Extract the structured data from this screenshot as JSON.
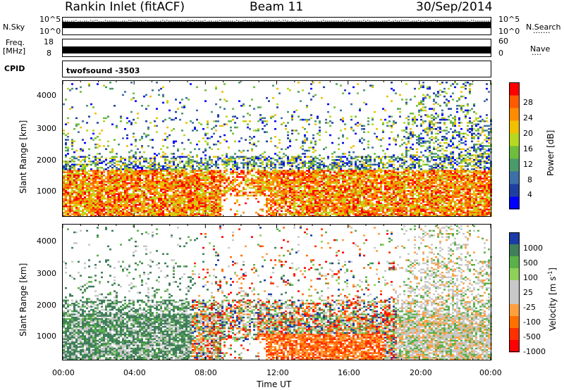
{
  "header": {
    "title": "Rankin Inlet (fitACF)",
    "beam": "Beam 11",
    "date": "30/Sep/2014"
  },
  "status_panels": {
    "nsky_label": "N.Sky",
    "nsky_ticks": [
      "10^5",
      "10^0"
    ],
    "nsearch_label": "N.Search",
    "nsearch_ticks": [
      "10^5",
      "10^0"
    ],
    "freq_label_1": "Freq.",
    "freq_label_2": "[MHz]",
    "freq_ticks": [
      "18",
      "8"
    ],
    "nave_label": "Nave",
    "nave_ticks": [
      "60",
      "0"
    ],
    "cpid_label": "CPID",
    "cpid_value": "twofsound -3503"
  },
  "colors": {
    "power_scale": [
      "#0000ff",
      "#1f3fa0",
      "#3d6fa8",
      "#4a9a6a",
      "#6ebd3c",
      "#b6d820",
      "#f0c000",
      "#ff8c00",
      "#ff5a00",
      "#ff0000"
    ],
    "velocity_scale": [
      "#1a3ca8",
      "#3f7f5a",
      "#5ab04a",
      "#8ed05a",
      "#c8c8c8",
      "#c8c8c8",
      "#ffa040",
      "#ff7000",
      "#ff3000",
      "#ff0000"
    ]
  },
  "chart_data": [
    {
      "type": "heatmap",
      "name": "power",
      "ylabel": "Slant Range [km]",
      "yticks": [
        1000,
        2000,
        3000,
        4000
      ],
      "ylim": [
        200,
        4500
      ],
      "colorbar_label": "Power [dB]",
      "colorbar_ticks": [
        "28",
        "24",
        "20",
        "16",
        "12",
        "8",
        "4"
      ],
      "clim": [
        0,
        30
      ]
    },
    {
      "type": "heatmap",
      "name": "velocity",
      "ylabel": "Slant Range [km]",
      "yticks": [
        1000,
        2000,
        3000,
        4000
      ],
      "ylim": [
        200,
        4500
      ],
      "colorbar_label": "Velocity [m s",
      "colorbar_label_sup": "-1",
      "colorbar_label_end": "]",
      "colorbar_ticks": [
        "1000",
        "500",
        "100",
        "25",
        "-25",
        "-100",
        "-500",
        "-1000"
      ],
      "xlabel": "Time UT",
      "xticks": [
        "00:00",
        "04:00",
        "08:00",
        "12:00",
        "16:00",
        "20:00",
        "00:00"
      ]
    }
  ]
}
